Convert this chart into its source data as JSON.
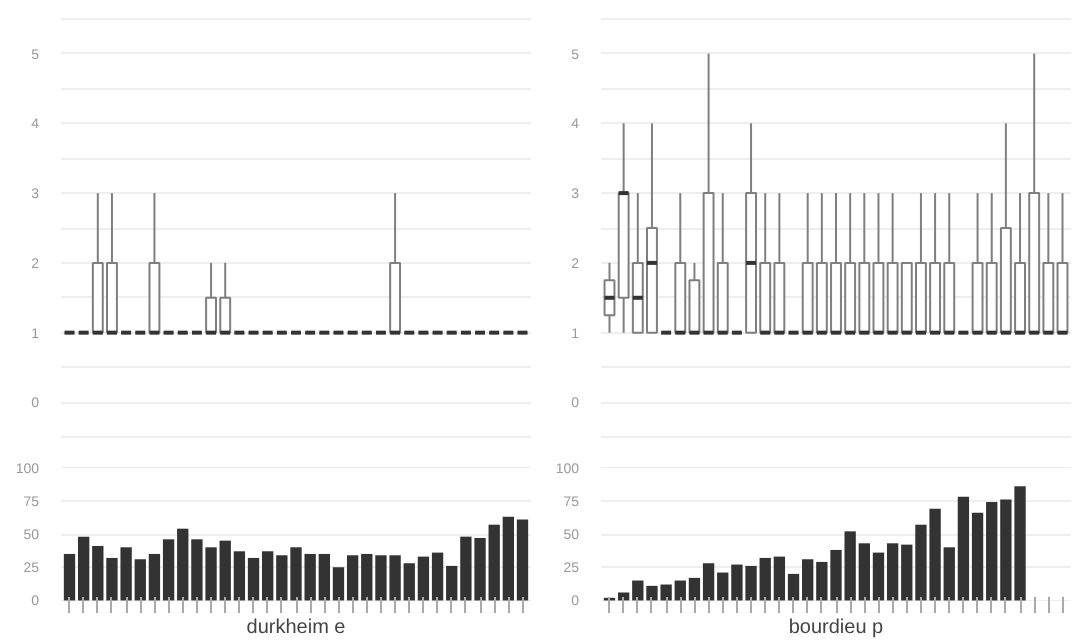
{
  "chart_data": [
    {
      "type": "box",
      "categories": [
        null,
        null,
        null,
        null,
        null,
        null,
        null,
        null,
        null,
        null,
        null,
        null,
        null,
        null,
        null,
        null,
        null,
        null,
        null,
        null,
        null,
        null,
        null,
        null,
        null,
        null,
        null,
        null,
        null,
        null,
        null,
        null,
        null
      ],
      "ylim": [
        -0.5,
        5.5
      ],
      "yticks": [
        {
          "value": -0.5,
          "label": null
        },
        0,
        {
          "value": 0.5,
          "label": null
        },
        1,
        {
          "value": 1.5,
          "label": null
        },
        2,
        {
          "value": 2.5,
          "label": null
        },
        3,
        {
          "value": 3.5,
          "label": null
        },
        4,
        {
          "value": 4.5,
          "label": null
        },
        5,
        {
          "value": 5.5,
          "label": null
        }
      ],
      "grid": "y",
      "tick_labels": "y",
      "color": "#7f7f7f",
      "boxes": [
        {
          "low": 1,
          "q1": 1,
          "median": 1,
          "q3": 1,
          "high": 1
        },
        {
          "low": 1,
          "q1": 1,
          "median": 1,
          "q3": 1,
          "high": 1
        },
        {
          "low": 1,
          "q1": 1,
          "median": 1,
          "q3": 2,
          "high": 3
        },
        {
          "low": 1,
          "q1": 1,
          "median": 1,
          "q3": 2,
          "high": 3
        },
        {
          "low": 1,
          "q1": 1,
          "median": 1,
          "q3": 1,
          "high": 1
        },
        {
          "low": 1,
          "q1": 1,
          "median": 1,
          "q3": 1,
          "high": 1
        },
        {
          "low": 1,
          "q1": 1,
          "median": 1,
          "q3": 2,
          "high": 3
        },
        {
          "low": 1,
          "q1": 1,
          "median": 1,
          "q3": 1,
          "high": 1
        },
        {
          "low": 1,
          "q1": 1,
          "median": 1,
          "q3": 1,
          "high": 1
        },
        {
          "low": 1,
          "q1": 1,
          "median": 1,
          "q3": 1,
          "high": 1
        },
        {
          "low": 1,
          "q1": 1,
          "median": 1,
          "q3": 1.5,
          "high": 2
        },
        {
          "low": 1,
          "q1": 1,
          "median": 1,
          "q3": 1.5,
          "high": 2
        },
        {
          "low": 1,
          "q1": 1,
          "median": 1,
          "q3": 1,
          "high": 1
        },
        {
          "low": 1,
          "q1": 1,
          "median": 1,
          "q3": 1,
          "high": 1
        },
        {
          "low": 1,
          "q1": 1,
          "median": 1,
          "q3": 1,
          "high": 1
        },
        {
          "low": 1,
          "q1": 1,
          "median": 1,
          "q3": 1,
          "high": 1
        },
        {
          "low": 1,
          "q1": 1,
          "median": 1,
          "q3": 1,
          "high": 1
        },
        {
          "low": 1,
          "q1": 1,
          "median": 1,
          "q3": 1,
          "high": 1
        },
        {
          "low": 1,
          "q1": 1,
          "median": 1,
          "q3": 1,
          "high": 1
        },
        {
          "low": 1,
          "q1": 1,
          "median": 1,
          "q3": 1,
          "high": 1
        },
        {
          "low": 1,
          "q1": 1,
          "median": 1,
          "q3": 1,
          "high": 1
        },
        {
          "low": 1,
          "q1": 1,
          "median": 1,
          "q3": 1,
          "high": 1
        },
        {
          "low": 1,
          "q1": 1,
          "median": 1,
          "q3": 1,
          "high": 1
        },
        {
          "low": 1,
          "q1": 1,
          "median": 1,
          "q3": 2,
          "high": 3
        },
        {
          "low": 1,
          "q1": 1,
          "median": 1,
          "q3": 1,
          "high": 1
        },
        {
          "low": 1,
          "q1": 1,
          "median": 1,
          "q3": 1,
          "high": 1
        },
        {
          "low": 1,
          "q1": 1,
          "median": 1,
          "q3": 1,
          "high": 1
        },
        {
          "low": 1,
          "q1": 1,
          "median": 1,
          "q3": 1,
          "high": 1
        },
        {
          "low": 1,
          "q1": 1,
          "median": 1,
          "q3": 1,
          "high": 1
        },
        {
          "low": 1,
          "q1": 1,
          "median": 1,
          "q3": 1,
          "high": 1
        },
        {
          "low": 1,
          "q1": 1,
          "median": 1,
          "q3": 1,
          "high": 1
        },
        {
          "low": 1,
          "q1": 1,
          "median": 1,
          "q3": 1,
          "high": 1
        },
        {
          "low": 1,
          "q1": 1,
          "median": 1,
          "q3": 1,
          "high": 1
        }
      ]
    },
    {
      "type": "bar",
      "xlabel": "durkheim e",
      "categories": [
        null,
        null,
        null,
        null,
        null,
        null,
        null,
        null,
        null,
        null,
        null,
        null,
        null,
        null,
        null,
        null,
        null,
        null,
        null,
        null,
        null,
        null,
        null,
        null,
        null,
        null,
        null,
        null,
        null,
        null,
        null,
        null,
        null
      ],
      "color": "#333333",
      "ylim": [
        0,
        100
      ],
      "yticks": [
        0,
        25,
        50,
        75,
        100
      ],
      "grid": "y",
      "values": [
        35,
        48,
        41,
        32,
        40,
        31,
        35,
        46,
        54,
        46,
        40,
        45,
        37,
        32,
        37,
        34,
        40,
        35,
        35,
        25,
        34,
        35,
        34,
        34,
        28,
        33,
        36,
        26,
        48,
        47,
        57,
        63,
        61
      ]
    },
    {
      "type": "box",
      "categories": [
        null,
        null,
        null,
        null,
        null,
        null,
        null,
        null,
        null,
        null,
        null,
        null,
        null,
        null,
        null,
        null,
        null,
        null,
        null,
        null,
        null,
        null,
        null,
        null,
        null,
        null,
        null,
        null,
        null,
        null,
        null,
        null,
        null
      ],
      "ylim": [
        -0.5,
        5.5
      ],
      "yticks": [
        {
          "value": -0.5,
          "label": null
        },
        0,
        {
          "value": 0.5,
          "label": null
        },
        1,
        {
          "value": 1.5,
          "label": null
        },
        2,
        {
          "value": 2.5,
          "label": null
        },
        3,
        {
          "value": 3.5,
          "label": null
        },
        4,
        {
          "value": 4.5,
          "label": null
        },
        5,
        {
          "value": 5.5,
          "label": null
        }
      ],
      "grid": "y",
      "tick_labels": "y",
      "color": "#7f7f7f",
      "boxes": [
        {
          "low": 1,
          "q1": 1.25,
          "median": 1.5,
          "q3": 1.75,
          "high": 2
        },
        {
          "low": 1,
          "q1": 1.5,
          "median": 3,
          "q3": 3,
          "high": 4
        },
        {
          "low": 1,
          "q1": 1,
          "median": 1.5,
          "q3": 2,
          "high": 3
        },
        {
          "low": 1,
          "q1": 1,
          "median": 2,
          "q3": 2.5,
          "high": 4
        },
        {
          "low": 1,
          "q1": 1,
          "median": 1,
          "q3": 1,
          "high": 1
        },
        {
          "low": 1,
          "q1": 1,
          "median": 1,
          "q3": 2,
          "high": 3
        },
        {
          "low": 1,
          "q1": 1,
          "median": 1,
          "q3": 1.75,
          "high": 2
        },
        {
          "low": 1,
          "q1": 1,
          "median": 1,
          "q3": 3,
          "high": 5
        },
        {
          "low": 1,
          "q1": 1,
          "median": 1,
          "q3": 2,
          "high": 3
        },
        {
          "low": 1,
          "q1": 1,
          "median": 1,
          "q3": 1,
          "high": 1
        },
        {
          "low": 1,
          "q1": 1,
          "median": 2,
          "q3": 3,
          "high": 4
        },
        {
          "low": 1,
          "q1": 1,
          "median": 1,
          "q3": 2,
          "high": 3
        },
        {
          "low": 1,
          "q1": 1,
          "median": 1,
          "q3": 2,
          "high": 3
        },
        {
          "low": 1,
          "q1": 1,
          "median": 1,
          "q3": 1,
          "high": 1
        },
        {
          "low": 1,
          "q1": 1,
          "median": 1,
          "q3": 2,
          "high": 3
        },
        {
          "low": 1,
          "q1": 1,
          "median": 1,
          "q3": 2,
          "high": 3
        },
        {
          "low": 1,
          "q1": 1,
          "median": 1,
          "q3": 2,
          "high": 3
        },
        {
          "low": 1,
          "q1": 1,
          "median": 1,
          "q3": 2,
          "high": 3
        },
        {
          "low": 1,
          "q1": 1,
          "median": 1,
          "q3": 2,
          "high": 3
        },
        {
          "low": 1,
          "q1": 1,
          "median": 1,
          "q3": 2,
          "high": 3
        },
        {
          "low": 1,
          "q1": 1,
          "median": 1,
          "q3": 2,
          "high": 3
        },
        {
          "low": 1,
          "q1": 1,
          "median": 1,
          "q3": 2,
          "high": 2
        },
        {
          "low": 1,
          "q1": 1,
          "median": 1,
          "q3": 2,
          "high": 3
        },
        {
          "low": 1,
          "q1": 1,
          "median": 1,
          "q3": 2,
          "high": 3
        },
        {
          "low": 1,
          "q1": 1,
          "median": 1,
          "q3": 2,
          "high": 3
        },
        {
          "low": 1,
          "q1": 1,
          "median": 1,
          "q3": 1,
          "high": 1
        },
        {
          "low": 1,
          "q1": 1,
          "median": 1,
          "q3": 2,
          "high": 3
        },
        {
          "low": 1,
          "q1": 1,
          "median": 1,
          "q3": 2,
          "high": 3
        },
        {
          "low": 1,
          "q1": 1,
          "median": 1,
          "q3": 2.5,
          "high": 4
        },
        {
          "low": 1,
          "q1": 1,
          "median": 1,
          "q3": 2,
          "high": 3
        },
        {
          "low": 1,
          "q1": 1,
          "median": 1,
          "q3": 3,
          "high": 5
        },
        {
          "low": 1,
          "q1": 1,
          "median": 1,
          "q3": 2,
          "high": 3
        },
        {
          "low": 1,
          "q1": 1,
          "median": 1,
          "q3": 2,
          "high": 3
        }
      ]
    },
    {
      "type": "bar",
      "xlabel": "bourdieu p",
      "categories": [
        null,
        null,
        null,
        null,
        null,
        null,
        null,
        null,
        null,
        null,
        null,
        null,
        null,
        null,
        null,
        null,
        null,
        null,
        null,
        null,
        null,
        null,
        null,
        null,
        null,
        null,
        null,
        null,
        null,
        null,
        null,
        null,
        null
      ],
      "color": "#333333",
      "ylim": [
        0,
        100
      ],
      "yticks": [
        0,
        25,
        50,
        75,
        100
      ],
      "grid": "y",
      "values": [
        2,
        6,
        15,
        11,
        12,
        15,
        17,
        28,
        21,
        27,
        26,
        32,
        33,
        20,
        31,
        29,
        38,
        52,
        43,
        36,
        43,
        42,
        57,
        69,
        40,
        78,
        66,
        74,
        76,
        86,
        null,
        null,
        null
      ]
    }
  ]
}
